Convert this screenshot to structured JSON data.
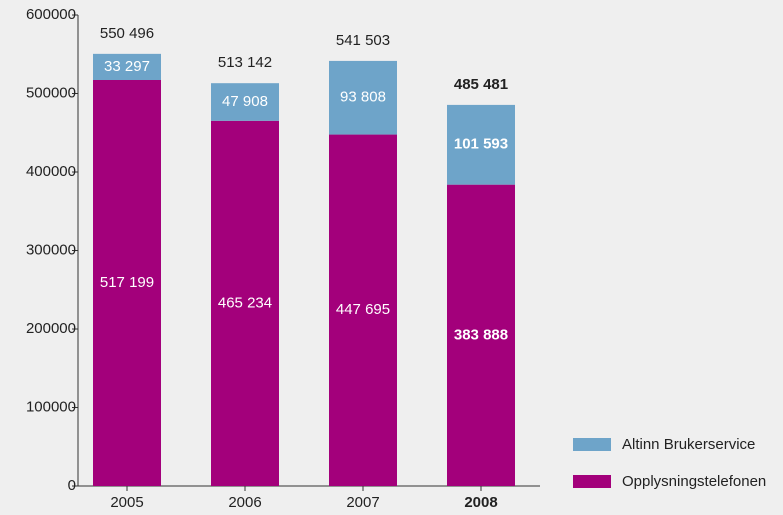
{
  "chart_data": {
    "type": "stacked_bar",
    "categories": [
      "2005",
      "2006",
      "2007",
      "2008"
    ],
    "series": [
      {
        "name": "Opplysningstelefonen",
        "color": "#a3007b",
        "values": [
          517199,
          465234,
          447695,
          383888
        ],
        "value_labels": [
          "517 199",
          "465 234",
          "447 695",
          "383 888"
        ]
      },
      {
        "name": "Altinn Brukerservice",
        "color": "#6ea4c9",
        "values": [
          33297,
          47908,
          93808,
          101593
        ],
        "value_labels": [
          "33 297",
          "47 908",
          "93 808",
          "101 593"
        ]
      }
    ],
    "totals": [
      550496,
      513142,
      541503,
      485481
    ],
    "total_labels": [
      "550 496",
      "513 142",
      "541 503",
      "485 481"
    ],
    "emphasis_index": 3,
    "ylim": [
      0,
      600000
    ],
    "yticks": [
      0,
      100000,
      200000,
      300000,
      400000,
      500000,
      600000
    ],
    "grid": false
  }
}
